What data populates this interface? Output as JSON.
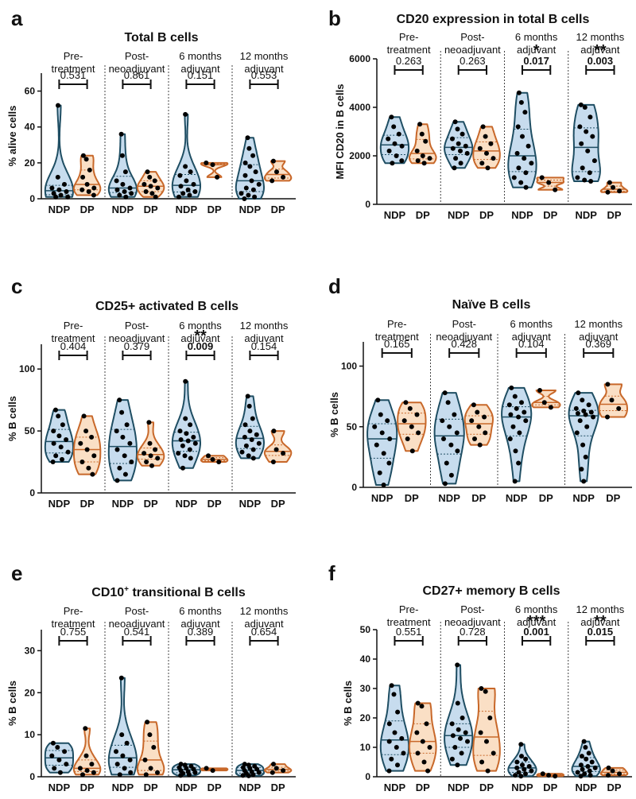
{
  "colors": {
    "ndp_stroke": "#1f4e63",
    "ndp_fill": "#c7dcee",
    "dp_stroke": "#c8682a",
    "dp_fill": "#fadfc5",
    "point": "#000000"
  },
  "chart_data": [
    {
      "label": "a",
      "type": "violin",
      "title": "Total B cells",
      "title_html": false,
      "ylabel": "% alive cells",
      "ylim": [
        0,
        70
      ],
      "yticks": [
        0,
        20,
        40,
        60
      ],
      "timepoints": [
        [
          "Pre-",
          "treatment"
        ],
        [
          "Post-",
          "neoadjuvant"
        ],
        [
          "6 months",
          "adjuvant"
        ],
        [
          "12 months",
          "adjuvant"
        ]
      ],
      "groups": [
        "NDP",
        "DP"
      ],
      "pvalues": [
        "0.531",
        "0.861",
        "0.151",
        "0.553"
      ],
      "significance": [
        "",
        "",
        "",
        ""
      ],
      "data": [
        {
          "NDP": [
            52,
            12,
            8,
            6,
            5,
            4,
            3,
            2,
            1,
            1
          ],
          "DP": [
            24,
            22,
            16,
            12,
            8,
            6,
            5,
            4,
            2
          ]
        },
        {
          "NDP": [
            36,
            24,
            15,
            10,
            8,
            6,
            5,
            4,
            3,
            2,
            1
          ],
          "DP": [
            15,
            12,
            10,
            8,
            7,
            6,
            4,
            3,
            1
          ]
        },
        {
          "NDP": [
            47,
            18,
            15,
            13,
            10,
            8,
            7,
            5,
            4,
            3,
            2,
            1
          ],
          "DP": [
            20,
            19,
            12
          ]
        },
        {
          "NDP": [
            34,
            28,
            24,
            20,
            18,
            15,
            13,
            10,
            8,
            6,
            5,
            3,
            2,
            1,
            0
          ],
          "DP": [
            21,
            15,
            12,
            10
          ]
        }
      ]
    },
    {
      "label": "b",
      "type": "violin",
      "title": "CD20 expression in total B cells",
      "title_html": false,
      "ylabel": "MFI CD20 in B cells",
      "ylim": [
        0,
        6000
      ],
      "yticks": [
        0,
        2000,
        4000,
        6000
      ],
      "timepoints": [
        [
          "Pre-",
          "treatment"
        ],
        [
          "Post-",
          "neoadjuvant"
        ],
        [
          "6 months",
          "adjuvant"
        ],
        [
          "12 months",
          "adjuvant"
        ]
      ],
      "groups": [
        "NDP",
        "DP"
      ],
      "pvalues": [
        "0.263",
        "0.263",
        "0.017",
        "0.003"
      ],
      "significance": [
        "",
        "",
        "*",
        "**"
      ],
      "data": [
        {
          "NDP": [
            3600,
            3200,
            2900,
            2700,
            2500,
            2400,
            2200,
            2000,
            1800,
            1700
          ],
          "DP": [
            3300,
            2900,
            2600,
            2200,
            2000,
            1900,
            1800,
            1700
          ]
        },
        {
          "NDP": [
            3400,
            3100,
            2900,
            2700,
            2500,
            2400,
            2300,
            2200,
            2100,
            1900,
            1700,
            1500
          ],
          "DP": [
            3200,
            2800,
            2500,
            2300,
            2100,
            1900,
            1700,
            1500
          ]
        },
        {
          "NDP": [
            4600,
            4200,
            3800,
            3200,
            2800,
            2400,
            2100,
            1900,
            1700,
            1500,
            1300,
            1100,
            900,
            700
          ],
          "DP": [
            1100,
            900,
            600
          ]
        },
        {
          "NDP": [
            4100,
            4000,
            3600,
            3200,
            3000,
            2800,
            2500,
            2200,
            1800,
            1500,
            1300,
            1100,
            1000,
            950
          ],
          "DP": [
            900,
            700,
            550,
            500
          ]
        }
      ]
    },
    {
      "label": "c",
      "type": "violin",
      "title": "CD25+ activated B cells",
      "title_html": false,
      "ylabel": "% B cells",
      "ylim": [
        0,
        120
      ],
      "yticks": [
        0,
        50,
        100
      ],
      "timepoints": [
        [
          "Pre-",
          "treatment"
        ],
        [
          "Post-",
          "neoadjuvant"
        ],
        [
          "6 months",
          "adjuvant"
        ],
        [
          "12 months",
          "adjuvant"
        ]
      ],
      "groups": [
        "NDP",
        "DP"
      ],
      "pvalues": [
        "0.404",
        "0.379",
        "0.009",
        "0.154"
      ],
      "significance": [
        "",
        "",
        "**",
        ""
      ],
      "data": [
        {
          "NDP": [
            67,
            62,
            55,
            50,
            46,
            43,
            40,
            37,
            33,
            30,
            27,
            25
          ],
          "DP": [
            62,
            50,
            45,
            40,
            35,
            30,
            25,
            20,
            15
          ]
        },
        {
          "NDP": [
            75,
            65,
            55,
            50,
            45,
            40,
            35,
            30,
            25,
            20,
            15,
            10
          ],
          "DP": [
            57,
            40,
            35,
            32,
            30,
            28,
            25,
            22
          ]
        },
        {
          "NDP": [
            90,
            60,
            55,
            50,
            48,
            45,
            43,
            42,
            40,
            38,
            35,
            32,
            30,
            28,
            20
          ],
          "DP": [
            30,
            27,
            25
          ]
        },
        {
          "NDP": [
            78,
            70,
            60,
            55,
            50,
            47,
            45,
            43,
            40,
            38,
            35,
            33,
            30,
            28
          ],
          "DP": [
            50,
            35,
            32,
            25
          ]
        }
      ]
    },
    {
      "label": "d",
      "type": "violin",
      "title": "Naïve B cells",
      "title_html": false,
      "ylabel": "% B cells",
      "ylim": [
        0,
        120
      ],
      "yticks": [
        0,
        50,
        100
      ],
      "timepoints": [
        [
          "Pre-",
          "treatment"
        ],
        [
          "Post-",
          "neoadjuvant"
        ],
        [
          "6 months",
          "adjuvant"
        ],
        [
          "12 months",
          "adjuvant"
        ]
      ],
      "groups": [
        "NDP",
        "DP"
      ],
      "pvalues": [
        "0.165",
        "0.428",
        "0.104",
        "0.369"
      ],
      "significance": [
        "",
        "",
        "",
        ""
      ],
      "data": [
        {
          "NDP": [
            72,
            60,
            55,
            50,
            45,
            40,
            35,
            28,
            20,
            12,
            2
          ],
          "DP": [
            70,
            65,
            60,
            55,
            50,
            45,
            40,
            30
          ]
        },
        {
          "NDP": [
            78,
            70,
            60,
            55,
            50,
            45,
            40,
            35,
            30,
            20,
            10,
            3
          ],
          "DP": [
            68,
            62,
            58,
            55,
            50,
            45,
            40,
            35
          ]
        },
        {
          "NDP": [
            82,
            75,
            70,
            68,
            65,
            62,
            60,
            58,
            55,
            50,
            45,
            40,
            30,
            20,
            5
          ],
          "DP": [
            80,
            70,
            66
          ]
        },
        {
          "NDP": [
            78,
            72,
            68,
            65,
            63,
            62,
            61,
            60,
            58,
            55,
            50,
            45,
            35,
            25,
            15,
            5
          ],
          "DP": [
            85,
            72,
            65,
            58
          ]
        }
      ]
    },
    {
      "label": "e",
      "type": "violin",
      "title": "CD10+ transitional B cells",
      "title_html": true,
      "ylabel": "% B cells",
      "ylim": [
        0,
        35
      ],
      "yticks": [
        0,
        10,
        20,
        30
      ],
      "timepoints": [
        [
          "Pre-",
          "treatment"
        ],
        [
          "Post-",
          "neoadjuvant"
        ],
        [
          "6 months",
          "adjuvant"
        ],
        [
          "12 months",
          "adjuvant"
        ]
      ],
      "groups": [
        "NDP",
        "DP"
      ],
      "pvalues": [
        "0.755",
        "0.541",
        "0.389",
        "0.654"
      ],
      "significance": [
        "",
        "",
        "",
        ""
      ],
      "data": [
        {
          "NDP": [
            8,
            7,
            6,
            5,
            4,
            3,
            2,
            1
          ],
          "DP": [
            11.5,
            5,
            3,
            2,
            1.5,
            1,
            0.5
          ]
        },
        {
          "NDP": [
            23.5,
            10,
            8,
            6,
            5,
            4,
            3,
            2,
            1,
            0.5
          ],
          "DP": [
            13,
            10,
            7,
            4,
            2,
            1,
            0.5
          ]
        },
        {
          "NDP": [
            3,
            2.8,
            2.5,
            2.2,
            2,
            1.8,
            1.5,
            1.2,
            1,
            0.8,
            0.5,
            0.3
          ],
          "DP": [
            2,
            1.5
          ]
        },
        {
          "NDP": [
            3,
            2.8,
            2.5,
            2.2,
            2,
            1.8,
            1.5,
            1.2,
            1,
            0.8,
            0.5,
            0.3,
            0.2
          ],
          "DP": [
            3,
            2,
            1.5,
            1
          ]
        }
      ]
    },
    {
      "label": "f",
      "type": "violin",
      "title": "CD27+ memory B cells",
      "title_html": false,
      "ylabel": "% B cells",
      "ylim": [
        0,
        50
      ],
      "yticks": [
        0,
        10,
        20,
        30,
        40,
        50
      ],
      "timepoints": [
        [
          "Pre-",
          "treatment"
        ],
        [
          "Post-",
          "neoadjuvant"
        ],
        [
          "6 months",
          "adjuvant"
        ],
        [
          "12 months",
          "adjuvant"
        ]
      ],
      "groups": [
        "NDP",
        "DP"
      ],
      "pvalues": [
        "0.551",
        "0.728",
        "0.001",
        "0.015"
      ],
      "significance": [
        "",
        "",
        "***",
        "**"
      ],
      "data": [
        {
          "NDP": [
            31,
            28,
            22,
            18,
            15,
            13,
            12,
            10,
            8,
            6,
            4,
            2
          ],
          "DP": [
            25,
            24,
            18,
            15,
            12,
            10,
            8,
            5,
            2
          ]
        },
        {
          "NDP": [
            38,
            25,
            20,
            18,
            16,
            15,
            14,
            13,
            12,
            10,
            8,
            6,
            4
          ],
          "DP": [
            30,
            29,
            20,
            15,
            12,
            8,
            5,
            2
          ]
        },
        {
          "NDP": [
            11,
            7,
            6,
            5,
            4,
            3.5,
            3,
            2.5,
            2,
            1.5,
            1,
            0.5,
            0.2
          ],
          "DP": [
            1,
            0.5,
            0.2
          ]
        },
        {
          "NDP": [
            12,
            10,
            8,
            7,
            6,
            5,
            4,
            3.5,
            3,
            2.5,
            2,
            1.5,
            1,
            0.5,
            0.2
          ],
          "DP": [
            3,
            2,
            1,
            0.5
          ]
        }
      ]
    }
  ]
}
